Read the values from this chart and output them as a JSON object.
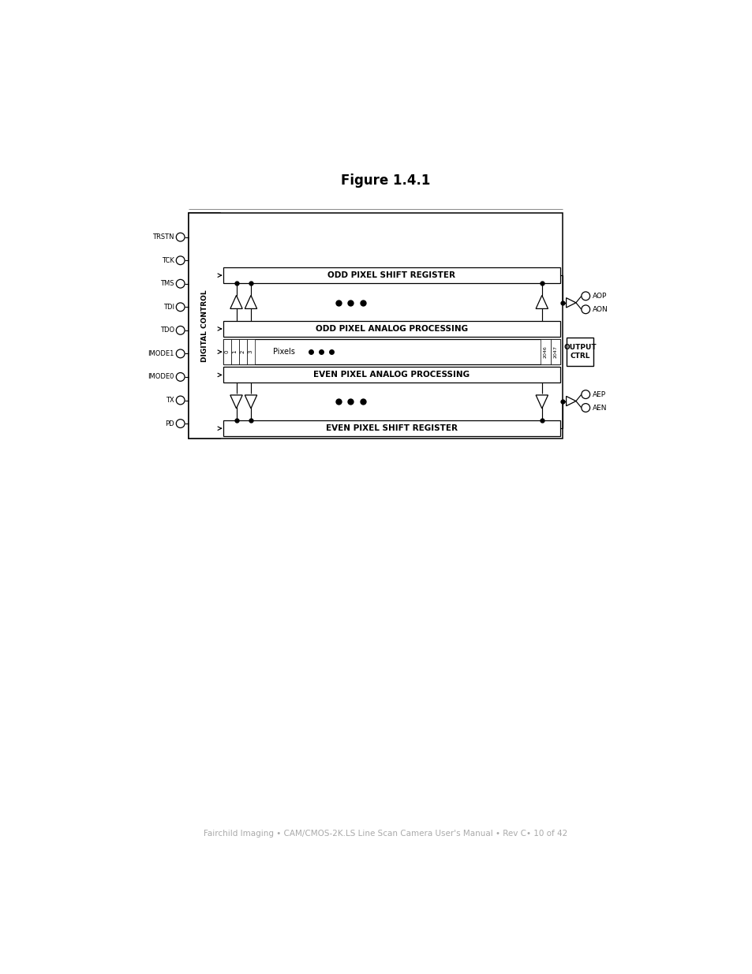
{
  "title": "Figure 1.4.1",
  "footer": "Fairchild Imaging • CAM/CMOS-2K.LS Line Scan Camera User's Manual • Rev C• 10 of 42",
  "bg_color": "#ffffff",
  "diagram": {
    "left_signals": [
      "TRSTN",
      "TCK",
      "TMS",
      "TDI",
      "TDO",
      "IMODE1",
      "IMODE0",
      "TX",
      "PD"
    ],
    "right_signals_top": [
      "AOP",
      "AON"
    ],
    "right_signals_bot": [
      "AEP",
      "AEN"
    ],
    "digital_control_label": "DIGITAL CONTROL",
    "output_ctrl_label": "OUTPUT\nCTRL",
    "odd_shift_reg_label": "ODD PIXEL SHIFT REGISTER",
    "odd_analog_label": "ODD PIXEL ANALOG PROCESSING",
    "pixel_array_nums_left": [
      "0",
      "1",
      "2",
      "3"
    ],
    "pixel_array_center": "Pixels",
    "pixel_array_nums_right": [
      "2046",
      "2047"
    ],
    "even_analog_label": "EVEN PIXEL ANALOG PROCESSING",
    "even_shift_reg_label": "EVEN PIXEL SHIFT REGISTER"
  }
}
